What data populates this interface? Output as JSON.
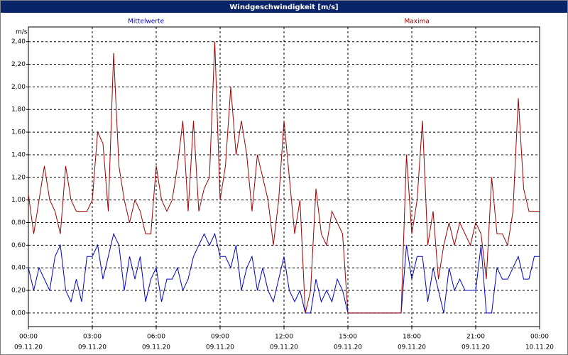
{
  "chart_data": {
    "type": "line",
    "title": "Windgeschwindigkeit [m/s]",
    "y_unit": "m/s",
    "x": [
      0,
      0.25,
      0.5,
      0.75,
      1,
      1.25,
      1.5,
      1.75,
      2,
      2.25,
      2.5,
      2.75,
      3,
      3.25,
      3.5,
      3.75,
      4,
      4.25,
      4.5,
      4.75,
      5,
      5.25,
      5.5,
      5.75,
      6,
      6.25,
      6.5,
      6.75,
      7,
      7.25,
      7.5,
      7.75,
      8,
      8.25,
      8.5,
      8.75,
      9,
      9.25,
      9.5,
      9.75,
      10,
      10.25,
      10.5,
      10.75,
      11,
      11.25,
      11.5,
      11.75,
      12,
      12.25,
      12.5,
      12.75,
      13,
      13.25,
      13.5,
      13.75,
      14,
      14.25,
      14.5,
      14.75,
      15,
      15.25,
      15.5,
      15.75,
      16,
      16.25,
      16.5,
      16.75,
      17,
      17.25,
      17.5,
      17.75,
      18,
      18.25,
      18.5,
      18.75,
      19,
      19.25,
      19.5,
      19.75,
      20,
      20.25,
      20.5,
      20.75,
      21,
      21.25,
      21.5,
      21.75,
      22,
      22.25,
      22.5,
      22.75,
      23,
      23.25,
      23.5,
      23.75,
      24
    ],
    "series": [
      {
        "name": "Mittelwerte",
        "color": "#0000c8",
        "values": [
          0.4,
          0.2,
          0.4,
          0.3,
          0.2,
          0.5,
          0.6,
          0.2,
          0.1,
          0.3,
          0.1,
          0.5,
          0.5,
          0.6,
          0.3,
          0.5,
          0.7,
          0.6,
          0.2,
          0.5,
          0.3,
          0.5,
          0.1,
          0.3,
          0.4,
          0.1,
          0.3,
          0.3,
          0.4,
          0.2,
          0.3,
          0.5,
          0.6,
          0.7,
          0.6,
          0.7,
          0.5,
          0.5,
          0.4,
          0.6,
          0.2,
          0.4,
          0.5,
          0.2,
          0.4,
          0.2,
          0.1,
          0.3,
          0.5,
          0.2,
          0.1,
          0.2,
          0,
          0,
          0.3,
          0.1,
          0.2,
          0.1,
          0.3,
          0.2,
          0,
          0,
          0,
          0,
          0,
          0,
          0,
          0,
          0,
          0,
          0,
          0.6,
          0.3,
          0.5,
          0.5,
          0.1,
          0.4,
          0.2,
          0,
          0.4,
          0.2,
          0.3,
          0.2,
          0.2,
          0.2,
          0.6,
          0,
          0,
          0.4,
          0.3,
          0.3,
          0.4,
          0.5,
          0.3,
          0.3,
          0.5,
          0.5
        ]
      },
      {
        "name": "Maxima",
        "color": "#a00000",
        "values": [
          1.05,
          0.7,
          1.0,
          1.3,
          1.0,
          0.9,
          0.7,
          1.3,
          1.0,
          0.9,
          0.9,
          0.9,
          1.0,
          1.6,
          1.5,
          0.9,
          2.3,
          1.3,
          1.0,
          0.8,
          1.0,
          0.9,
          0.7,
          0.7,
          1.3,
          1.0,
          0.9,
          1.0,
          1.3,
          1.7,
          0.9,
          1.7,
          0.9,
          1.1,
          1.2,
          2.4,
          1.0,
          1.3,
          2.0,
          1.4,
          1.7,
          1.4,
          0.9,
          1.4,
          1.2,
          1.0,
          0.6,
          1.0,
          1.7,
          1.2,
          0.7,
          1.0,
          0,
          0.2,
          1.1,
          0.7,
          0.6,
          0.9,
          0.8,
          0.7,
          0,
          0,
          0,
          0,
          0,
          0,
          0,
          0,
          0,
          0,
          0,
          1.4,
          0.7,
          1.0,
          1.7,
          0.6,
          0.9,
          0.3,
          0.6,
          0.8,
          0.6,
          0.8,
          0.7,
          0.6,
          0.8,
          0.7,
          0.3,
          1.2,
          0.7,
          0.7,
          0.6,
          0.9,
          1.9,
          1.1,
          0.9,
          0.9,
          0.9
        ]
      }
    ],
    "xlim": [
      0,
      24
    ],
    "xticks": [
      {
        "value": 0,
        "label": "00:00"
      },
      {
        "value": 3,
        "label": "03:00"
      },
      {
        "value": 6,
        "label": "06:00"
      },
      {
        "value": 9,
        "label": "09:00"
      },
      {
        "value": 12,
        "label": "12:00"
      },
      {
        "value": 15,
        "label": "15:00"
      },
      {
        "value": 18,
        "label": "18:00"
      },
      {
        "value": 21,
        "label": "21:00"
      },
      {
        "value": 24,
        "label": "00:00"
      }
    ],
    "xtick_dates": [
      "09.11.20",
      "09.11.20",
      "09.11.20",
      "09.11.20",
      "09.11.20",
      "09.11.20",
      "09.11.20",
      "09.11.20",
      "10.11.20"
    ],
    "ylim": [
      -0.12,
      2.53
    ],
    "yticks": [
      {
        "value": 0,
        "label": "0,00"
      },
      {
        "value": 0.2,
        "label": "0,20"
      },
      {
        "value": 0.4,
        "label": "0,40"
      },
      {
        "value": 0.6,
        "label": "0,60"
      },
      {
        "value": 0.8,
        "label": "0,80"
      },
      {
        "value": 1.0,
        "label": "1,00"
      },
      {
        "value": 1.2,
        "label": "1,20"
      },
      {
        "value": 1.4,
        "label": "1,40"
      },
      {
        "value": 1.6,
        "label": "1,60"
      },
      {
        "value": 1.8,
        "label": "1,80"
      },
      {
        "value": 2.0,
        "label": "2,00"
      },
      {
        "value": 2.2,
        "label": "2,20"
      },
      {
        "value": 2.4,
        "label": "2,40"
      }
    ],
    "grid": true
  }
}
